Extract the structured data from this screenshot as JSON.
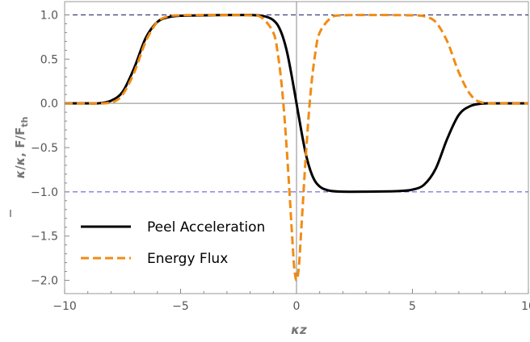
{
  "chart_data": {
    "type": "line",
    "xlabel": "κz",
    "ylabel": "κ̄/κ, F/F_th",
    "ylabel_parts": {
      "kbar": "κ",
      "slash1": "/",
      "kappa": "κ",
      "sep": ", F/F",
      "sub": "th"
    },
    "xlim": [
      -10,
      10
    ],
    "ylim": [
      -2.15,
      1.15
    ],
    "x_ticks": [
      -10,
      -5,
      0,
      5,
      10
    ],
    "x_tick_labels": [
      "−10",
      "−5",
      "0",
      "5",
      "10"
    ],
    "y_ticks": [
      1.0,
      0.5,
      0.0,
      -0.5,
      -1.0,
      -1.5,
      -2.0
    ],
    "y_tick_labels": [
      "1.0",
      "0.5",
      "0.0",
      "−0.5",
      "−1.0",
      "−1.5",
      "−2.0"
    ],
    "reference_lines": [
      {
        "y": 1.0,
        "color": "#1a1a6e",
        "style": "dashed"
      },
      {
        "y": -1.0,
        "color": "#4b4bd8",
        "style": "dashed"
      },
      {
        "y": 0.0,
        "color": "#888888",
        "style": "solid"
      }
    ],
    "series": [
      {
        "name": "Peel Acceleration",
        "color": "#000000",
        "style": "solid",
        "x": [
          -10,
          -9,
          -8.5,
          -8,
          -7.5,
          -7,
          -6.5,
          -6,
          -5.5,
          -5,
          -4,
          -3,
          -2,
          -1.5,
          -1.2,
          -1,
          -0.8,
          -0.6,
          -0.4,
          -0.2,
          0,
          0.2,
          0.4,
          0.6,
          0.8,
          1,
          1.2,
          1.5,
          2,
          3,
          4,
          4.5,
          5,
          5.5,
          6,
          6.5,
          7,
          7.5,
          8,
          8.5,
          9,
          10
        ],
        "y": [
          0,
          0,
          0.002,
          0.03,
          0.13,
          0.4,
          0.74,
          0.92,
          0.975,
          0.99,
          0.995,
          0.998,
          0.998,
          0.99,
          0.97,
          0.94,
          0.88,
          0.76,
          0.57,
          0.3,
          0,
          -0.3,
          -0.57,
          -0.76,
          -0.88,
          -0.94,
          -0.97,
          -0.99,
          -0.998,
          -0.998,
          -0.995,
          -0.99,
          -0.975,
          -0.92,
          -0.74,
          -0.4,
          -0.13,
          -0.03,
          -0.002,
          0,
          0,
          0
        ]
      },
      {
        "name": "Energy Flux",
        "color": "#f08c14",
        "style": "dashed",
        "x": [
          -10,
          -9,
          -8,
          -7.5,
          -7,
          -6.5,
          -6,
          -5.5,
          -5,
          -4,
          -3,
          -2,
          -1.5,
          -1,
          -0.8,
          -0.6,
          -0.4,
          -0.2,
          -0.1,
          0,
          0.1,
          0.2,
          0.4,
          0.6,
          0.8,
          1,
          1.5,
          2,
          3,
          4,
          5,
          5.5,
          6,
          6.5,
          7,
          7.5,
          8,
          9,
          10
        ],
        "y": [
          0,
          0,
          0.01,
          0.1,
          0.35,
          0.7,
          0.92,
          0.985,
          0.995,
          0.998,
          0.998,
          0.995,
          0.97,
          0.8,
          0.55,
          0.1,
          -0.6,
          -1.45,
          -1.85,
          -2.0,
          -1.85,
          -1.45,
          -0.6,
          0.1,
          0.55,
          0.8,
          0.97,
          0.995,
          0.998,
          0.998,
          0.995,
          0.985,
          0.92,
          0.7,
          0.35,
          0.1,
          0.01,
          0,
          0
        ]
      }
    ],
    "legend": {
      "position": "bottom-left"
    },
    "grid": false
  }
}
